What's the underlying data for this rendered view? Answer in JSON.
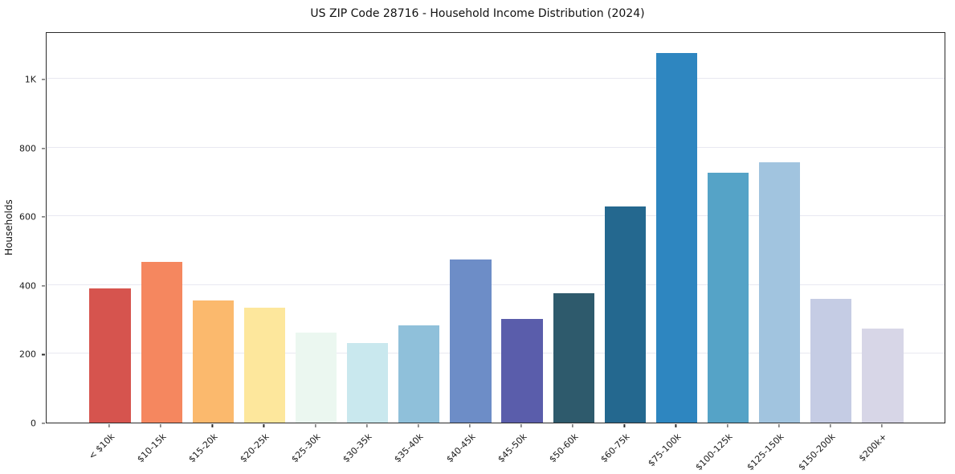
{
  "chart_data": {
    "type": "bar",
    "title": "US ZIP Code 28716 - Household Income Distribution (2024)",
    "xlabel": "",
    "ylabel": "Households",
    "categories": [
      "< $10k",
      "$10-15k",
      "$15-20k",
      "$20-25k",
      "$25-30k",
      "$30-35k",
      "$35-40k",
      "$40-45k",
      "$45-50k",
      "$50-60k",
      "$60-75k",
      "$75-100k",
      "$100-125k",
      "$125-150k",
      "$150-200k",
      "$200k+"
    ],
    "values": [
      390,
      467,
      355,
      335,
      262,
      231,
      283,
      474,
      301,
      376,
      629,
      1075,
      727,
      757,
      360,
      273
    ],
    "bar_colors": [
      "#d6544e",
      "#f5875f",
      "#fbb96d",
      "#fde79c",
      "#ebf7f0",
      "#c9e8ee",
      "#8fc0da",
      "#6d8dc7",
      "#5a5dab",
      "#2e5a6c",
      "#24688f",
      "#2e86c0",
      "#55a3c7",
      "#a1c4df",
      "#c5cce4",
      "#d7d6e7"
    ],
    "ylim": [
      0,
      1138
    ],
    "yticks": [
      0,
      200,
      400,
      600,
      800,
      1000
    ],
    "ytick_labels": [
      "0",
      "200",
      "400",
      "600",
      "800",
      "1K"
    ],
    "grid": true,
    "legend": false
  }
}
